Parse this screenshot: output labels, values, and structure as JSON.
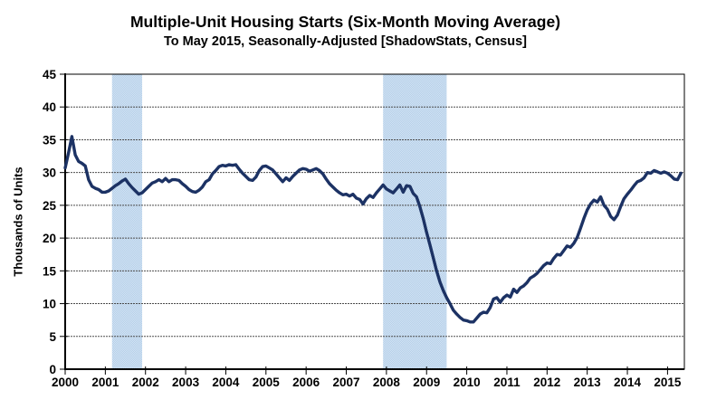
{
  "chart_data": {
    "type": "line",
    "title": "Multiple-Unit Housing Starts (Six-Month Moving Average)",
    "subtitle": "To May 2015, Seasonally-Adjusted [ShadowStats, Census]",
    "ylabel": "Thousands of Units",
    "ylim": [
      0,
      45
    ],
    "yticks": [
      0,
      5,
      10,
      15,
      20,
      25,
      30,
      35,
      40,
      45
    ],
    "xticks": [
      2000,
      2001,
      2002,
      2003,
      2004,
      2005,
      2006,
      2007,
      2008,
      2009,
      2010,
      2011,
      2012,
      2013,
      2014,
      2015
    ],
    "grid": "horizontal dotted gridlines at every 5 units, plot framed by black border",
    "legend": "none",
    "line_color": "#1c3264",
    "recession_band_color": "#b4cfe9",
    "recession_band_dot_color": "#d3e3f3",
    "recession_bands": [
      {
        "start": "2001-03",
        "end": "2001-11"
      },
      {
        "start": "2007-12",
        "end": "2009-06"
      }
    ],
    "series": [
      {
        "name": "Multiple-unit housing starts, six-month moving average (thousands of units)",
        "start": "2000-01",
        "end": "2015-05",
        "frequency": "monthly",
        "values": [
          30.7,
          33.0,
          35.5,
          32.7,
          31.7,
          31.4,
          31.0,
          28.9,
          27.9,
          27.6,
          27.4,
          27.0,
          27.0,
          27.2,
          27.6,
          28.0,
          28.3,
          28.7,
          29.0,
          28.3,
          27.7,
          27.2,
          26.7,
          26.9,
          27.4,
          27.9,
          28.4,
          28.6,
          28.9,
          28.6,
          29.1,
          28.6,
          28.9,
          28.9,
          28.8,
          28.3,
          27.9,
          27.4,
          27.1,
          27.0,
          27.3,
          27.8,
          28.6,
          28.9,
          29.8,
          30.3,
          30.9,
          31.1,
          31.0,
          31.2,
          31.1,
          31.2,
          30.5,
          29.9,
          29.4,
          28.9,
          28.8,
          29.3,
          30.3,
          30.9,
          31.0,
          30.7,
          30.4,
          29.8,
          29.2,
          28.6,
          29.2,
          28.8,
          29.4,
          29.9,
          30.4,
          30.6,
          30.5,
          30.2,
          30.4,
          30.6,
          30.3,
          29.8,
          29.0,
          28.3,
          27.8,
          27.3,
          26.9,
          26.6,
          26.7,
          26.4,
          26.7,
          26.1,
          25.9,
          25.2,
          26.0,
          26.5,
          26.2,
          26.9,
          27.5,
          28.1,
          27.5,
          27.2,
          26.9,
          27.5,
          28.1,
          27.0,
          28.0,
          27.9,
          26.8,
          26.3,
          24.8,
          23.0,
          20.9,
          19.0,
          17.0,
          15.0,
          13.3,
          12.0,
          10.9,
          10.0,
          9.0,
          8.4,
          7.9,
          7.5,
          7.4,
          7.2,
          7.2,
          7.8,
          8.4,
          8.7,
          8.6,
          9.4,
          10.7,
          10.9,
          10.2,
          10.9,
          11.3,
          11.0,
          12.2,
          11.7,
          12.4,
          12.7,
          13.2,
          13.9,
          14.2,
          14.6,
          15.2,
          15.8,
          16.2,
          16.1,
          16.9,
          17.5,
          17.4,
          18.1,
          18.8,
          18.6,
          19.2,
          20.1,
          21.5,
          23.0,
          24.3,
          25.2,
          25.8,
          25.5,
          26.3,
          25.0,
          24.4,
          23.3,
          22.8,
          23.5,
          24.8,
          26.0,
          26.7,
          27.3,
          28.0,
          28.6,
          28.8,
          29.2,
          30.0,
          29.9,
          30.3,
          30.1,
          29.9,
          30.1,
          29.9,
          29.5,
          29.0,
          28.9,
          29.9
        ]
      }
    ]
  }
}
